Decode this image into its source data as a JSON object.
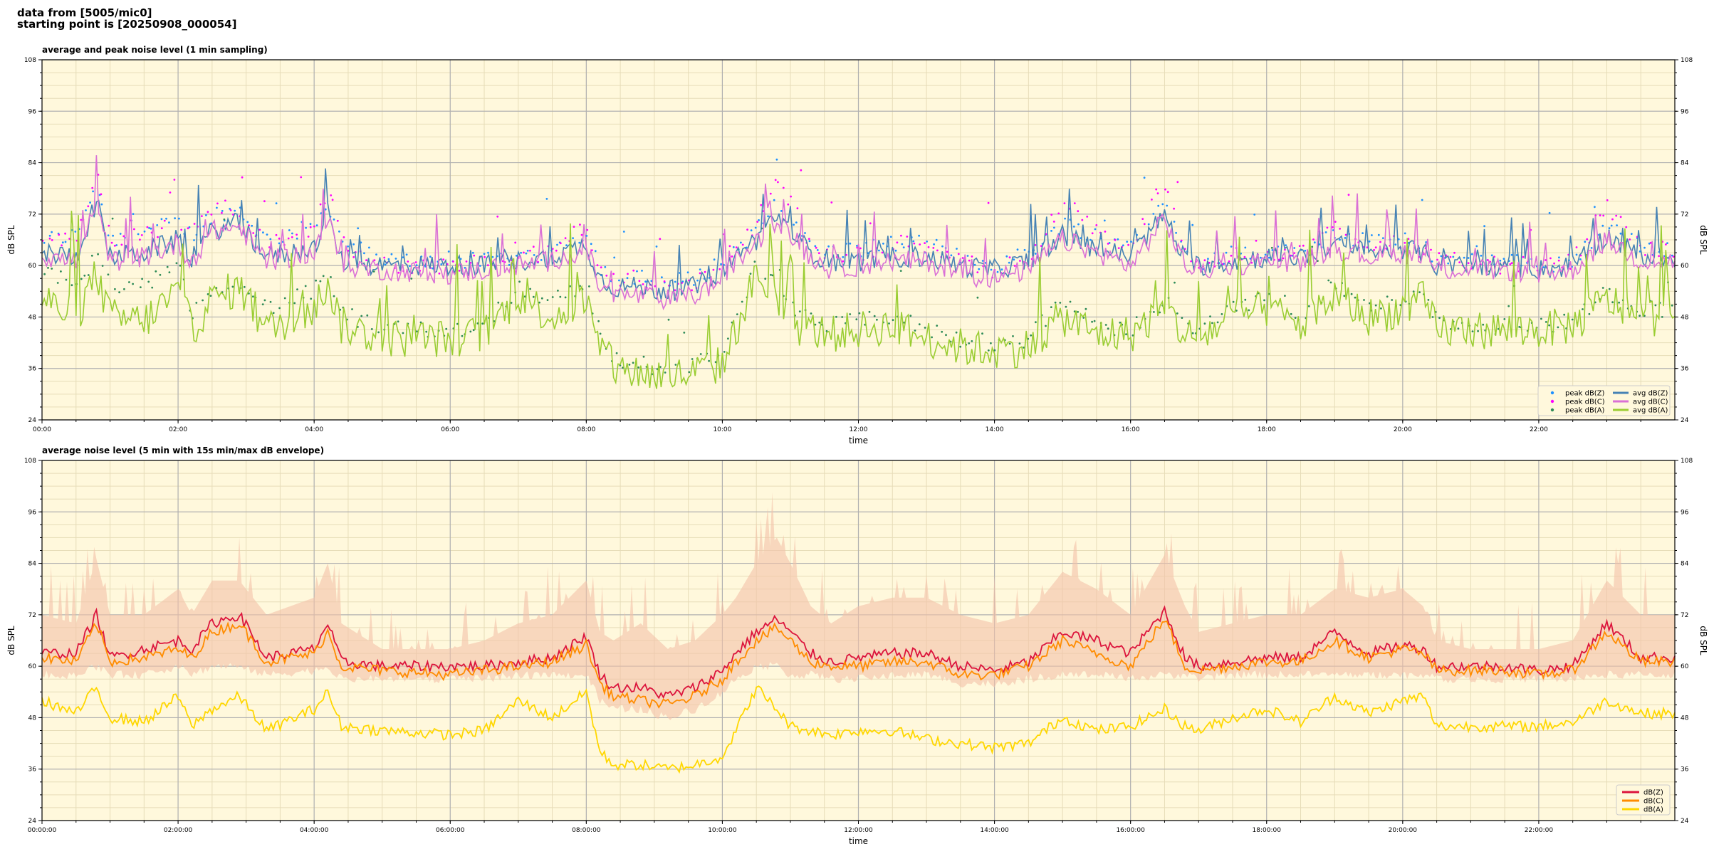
{
  "header": {
    "line1": "data from [5005/mic0]",
    "line2": "starting point is [20250908_000054]"
  },
  "colors": {
    "plot_background": "#fff8dc",
    "avg_z": "#4682b4",
    "avg_c": "#da70d6",
    "avg_a": "#9acd32",
    "peak_z": "#1e90ff",
    "peak_c": "#ff00ff",
    "peak_a": "#2e8b57",
    "env_z": "#dc143c",
    "env_c": "#ff8c00",
    "env_a": "#ffd700",
    "envelope_fill": "#f4c2a8"
  },
  "chart_data": [
    {
      "type": "line",
      "title": "average and peak noise level (1 min sampling)",
      "xlabel": "time",
      "ylabel": "dB SPL",
      "xlim": [
        0,
        24
      ],
      "ylim": [
        24,
        108
      ],
      "yticks": [
        24,
        36,
        48,
        60,
        72,
        84,
        96,
        108
      ],
      "xtick_labels": [
        "00:00",
        "02:00",
        "04:00",
        "06:00",
        "08:00",
        "10:00",
        "12:00",
        "14:00",
        "16:00",
        "18:00",
        "20:00",
        "22:00"
      ],
      "grid": true,
      "legend_position": "bottom-right",
      "x_unit": "hours",
      "x": [
        0,
        0.5,
        0.8,
        1.0,
        1.5,
        2.0,
        2.2,
        2.5,
        2.9,
        3.3,
        4.0,
        4.2,
        4.4,
        5.0,
        6.0,
        6.5,
        7.0,
        7.5,
        8.0,
        8.2,
        8.4,
        8.8,
        9.2,
        9.6,
        10.0,
        10.2,
        10.5,
        10.8,
        11.0,
        11.3,
        11.6,
        12.0,
        12.5,
        13.0,
        13.5,
        14.0,
        14.5,
        15.0,
        15.5,
        16.0,
        16.5,
        16.8,
        17.0,
        17.5,
        18.0,
        18.5,
        19.0,
        19.5,
        20.0,
        20.3,
        20.5,
        21.0,
        21.5,
        22.0,
        22.5,
        23.0,
        23.5,
        24.0
      ],
      "series": [
        {
          "name": "peak dB(Z)",
          "kind": "scatter",
          "values": [
            66,
            67,
            80,
            66,
            68,
            70,
            67,
            72,
            73,
            66,
            69,
            75,
            66,
            61,
            61,
            61,
            62,
            63,
            68,
            60,
            57,
            57,
            56,
            57,
            61,
            64,
            68,
            75,
            70,
            65,
            63,
            64,
            65,
            65,
            62,
            60,
            63,
            70,
            67,
            65,
            75,
            63,
            61,
            62,
            63,
            63,
            68,
            65,
            66,
            64,
            62,
            61,
            61,
            60,
            61,
            70,
            64,
            64
          ]
        },
        {
          "name": "peak dB(C)",
          "kind": "scatter",
          "values": [
            66,
            66,
            82,
            66,
            67,
            70,
            67,
            74,
            73,
            66,
            68,
            78,
            65,
            60,
            60,
            61,
            62,
            63,
            70,
            58,
            57,
            57,
            54,
            56,
            60,
            65,
            70,
            80,
            75,
            65,
            62,
            63,
            65,
            66,
            61,
            59,
            62,
            74,
            68,
            64,
            80,
            63,
            61,
            62,
            63,
            63,
            69,
            65,
            66,
            63,
            61,
            61,
            60,
            60,
            61,
            74,
            64,
            64
          ]
        },
        {
          "name": "peak dB(A)",
          "kind": "scatter",
          "values": [
            58,
            56,
            62,
            56,
            55,
            60,
            48,
            55,
            57,
            50,
            54,
            58,
            49,
            45,
            45,
            46,
            55,
            52,
            56,
            44,
            38,
            37,
            36,
            37,
            40,
            48,
            60,
            55,
            50,
            47,
            46,
            47,
            48,
            45,
            43,
            42,
            43,
            52,
            46,
            45,
            52,
            46,
            44,
            51,
            52,
            48,
            56,
            50,
            52,
            55,
            47,
            46,
            46,
            46,
            47,
            54,
            50,
            50
          ]
        },
        {
          "name": "avg dB(Z)",
          "kind": "line",
          "values": [
            63,
            62,
            75,
            62,
            63,
            66,
            62,
            68,
            70,
            62,
            64,
            72,
            61,
            60,
            60,
            60,
            61,
            62,
            65,
            57,
            55,
            55,
            54,
            55,
            59,
            62,
            66,
            72,
            68,
            63,
            61,
            61,
            62,
            62,
            60,
            59,
            61,
            67,
            64,
            62,
            72,
            61,
            60,
            61,
            62,
            62,
            65,
            63,
            64,
            63,
            60,
            60,
            60,
            59,
            60,
            67,
            62,
            62
          ]
        },
        {
          "name": "avg dB(C)",
          "kind": "line",
          "values": [
            62,
            61,
            74,
            61,
            62,
            65,
            61,
            68,
            69,
            61,
            63,
            71,
            60,
            59,
            58,
            59,
            60,
            61,
            64,
            55,
            53,
            53,
            52,
            53,
            57,
            61,
            65,
            71,
            67,
            62,
            59,
            60,
            61,
            61,
            58,
            57,
            59,
            66,
            63,
            60,
            71,
            60,
            59,
            60,
            61,
            61,
            64,
            62,
            63,
            62,
            59,
            59,
            59,
            58,
            59,
            66,
            61,
            61
          ]
        },
        {
          "name": "avg dB(A)",
          "kind": "line",
          "values": [
            52,
            48,
            58,
            48,
            47,
            54,
            45,
            52,
            55,
            45,
            50,
            56,
            46,
            43,
            43,
            44,
            53,
            48,
            52,
            40,
            36,
            35,
            34,
            35,
            37,
            45,
            58,
            52,
            46,
            45,
            44,
            45,
            46,
            43,
            41,
            40,
            41,
            48,
            44,
            44,
            50,
            44,
            43,
            48,
            50,
            46,
            53,
            48,
            50,
            52,
            45,
            45,
            45,
            45,
            46,
            52,
            48,
            48
          ]
        }
      ]
    },
    {
      "type": "area",
      "title": "average noise level (5 min with 15s min/max dB envelope)",
      "xlabel": "time",
      "ylabel": "dB SPL",
      "xlim": [
        0,
        24
      ],
      "ylim": [
        24,
        108
      ],
      "yticks": [
        24,
        36,
        48,
        60,
        72,
        84,
        96,
        108
      ],
      "xtick_labels": [
        "00:00:00",
        "02:00:00",
        "04:00:00",
        "06:00:00",
        "08:00:00",
        "10:00:00",
        "12:00:00",
        "14:00:00",
        "16:00:00",
        "18:00:00",
        "20:00:00",
        "22:00:00"
      ],
      "grid": true,
      "legend_position": "bottom-right",
      "x_unit": "hours",
      "x": [
        0,
        0.5,
        0.8,
        1.0,
        1.5,
        2.0,
        2.2,
        2.5,
        2.9,
        3.3,
        4.0,
        4.2,
        4.4,
        5.0,
        6.0,
        6.5,
        7.0,
        7.5,
        8.0,
        8.2,
        8.4,
        8.8,
        9.2,
        9.6,
        10.0,
        10.2,
        10.5,
        10.8,
        11.0,
        11.3,
        11.6,
        12.0,
        12.5,
        13.0,
        13.5,
        14.0,
        14.5,
        15.0,
        15.5,
        16.0,
        16.5,
        16.8,
        17.0,
        17.5,
        18.0,
        18.5,
        19.0,
        19.5,
        20.0,
        20.3,
        20.5,
        21.0,
        21.5,
        22.0,
        22.5,
        23.0,
        23.5,
        24.0
      ],
      "envelope_max": [
        72,
        70,
        85,
        72,
        72,
        78,
        72,
        80,
        80,
        72,
        76,
        84,
        70,
        64,
        64,
        66,
        70,
        72,
        80,
        68,
        66,
        70,
        64,
        66,
        72,
        76,
        84,
        90,
        84,
        74,
        70,
        74,
        76,
        76,
        72,
        70,
        72,
        82,
        78,
        72,
        86,
        74,
        68,
        70,
        72,
        72,
        78,
        76,
        78,
        74,
        66,
        64,
        64,
        64,
        66,
        80,
        72,
        72
      ],
      "envelope_min": [
        58,
        58,
        60,
        58,
        58,
        60,
        58,
        60,
        60,
        58,
        59,
        60,
        57,
        57,
        57,
        57,
        58,
        58,
        58,
        52,
        50,
        50,
        48,
        50,
        54,
        57,
        60,
        60,
        58,
        58,
        57,
        57,
        58,
        58,
        56,
        56,
        57,
        58,
        58,
        57,
        58,
        58,
        57,
        58,
        58,
        58,
        58,
        58,
        58,
        58,
        57,
        57,
        57,
        57,
        57,
        58,
        58,
        58
      ],
      "series": [
        {
          "name": "dB(Z)",
          "values": [
            63,
            63,
            72,
            62,
            64,
            66,
            64,
            70,
            72,
            62,
            64,
            70,
            61,
            60,
            60,
            60,
            61,
            62,
            67,
            58,
            55,
            55,
            53,
            55,
            59,
            63,
            68,
            71,
            68,
            63,
            61,
            62,
            63,
            63,
            60,
            59,
            61,
            68,
            66,
            63,
            73,
            62,
            60,
            61,
            62,
            62,
            68,
            63,
            65,
            64,
            60,
            60,
            60,
            59,
            60,
            70,
            62,
            62
          ]
        },
        {
          "name": "dB(C)",
          "values": [
            62,
            61,
            70,
            61,
            62,
            64,
            62,
            68,
            70,
            61,
            63,
            68,
            60,
            59,
            58,
            59,
            60,
            61,
            65,
            56,
            53,
            52,
            51,
            53,
            57,
            61,
            66,
            69,
            66,
            61,
            60,
            60,
            61,
            61,
            58,
            58,
            60,
            66,
            63,
            60,
            71,
            60,
            59,
            60,
            61,
            61,
            66,
            62,
            64,
            63,
            59,
            59,
            59,
            58,
            59,
            68,
            61,
            61
          ]
        },
        {
          "name": "dB(A)",
          "values": [
            52,
            49,
            55,
            48,
            47,
            53,
            46,
            50,
            53,
            45,
            50,
            54,
            46,
            45,
            44,
            45,
            52,
            48,
            54,
            40,
            37,
            37,
            36,
            37,
            39,
            45,
            55,
            50,
            46,
            45,
            44,
            45,
            45,
            43,
            42,
            41,
            42,
            48,
            45,
            46,
            50,
            46,
            45,
            48,
            50,
            47,
            53,
            49,
            52,
            53,
            46,
            46,
            46,
            46,
            47,
            52,
            49,
            49
          ]
        }
      ]
    }
  ]
}
